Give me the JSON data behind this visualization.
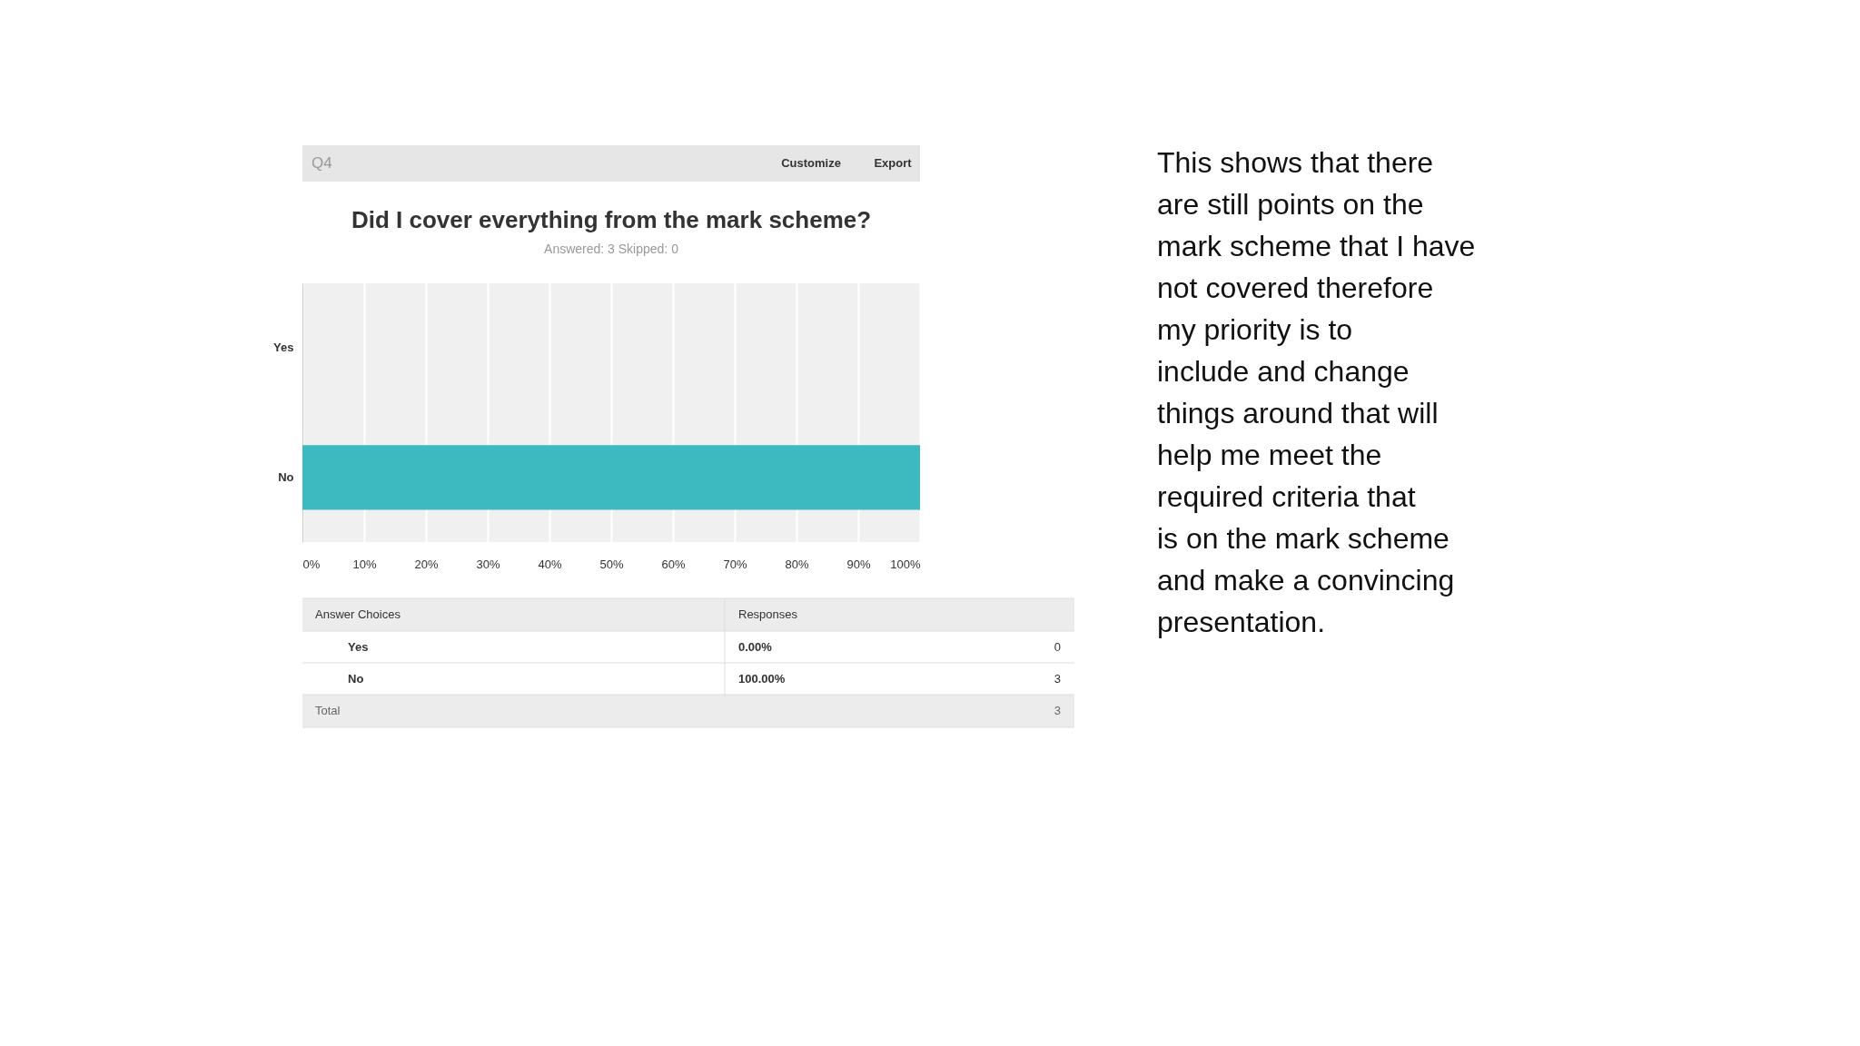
{
  "chart_data": {
    "type": "bar",
    "orientation": "horizontal",
    "title": "Did I cover everything from the mark scheme?",
    "subtitle": "Answered: 3    Skipped: 0",
    "categories": [
      "Yes",
      "No"
    ],
    "values": [
      0,
      100
    ],
    "color": "#3dbac0",
    "xlim": [
      0,
      100
    ],
    "xticks": [
      {
        "value": 0,
        "label": "0%"
      },
      {
        "value": 10,
        "label": "10%"
      },
      {
        "value": 20,
        "label": "20%"
      },
      {
        "value": 30,
        "label": "30%"
      },
      {
        "value": 40,
        "label": "40%"
      },
      {
        "value": 50,
        "label": "50%"
      },
      {
        "value": 60,
        "label": "60%"
      },
      {
        "value": 70,
        "label": "70%"
      },
      {
        "value": 80,
        "label": "80%"
      },
      {
        "value": 90,
        "label": "90%"
      },
      {
        "value": 100,
        "label": "100%"
      }
    ],
    "grid": "x",
    "annotations": [
      "Q4",
      "Customize",
      "Export",
      "Answer Choices",
      "Responses",
      "0.00%",
      "0",
      "100.00%",
      "3",
      "Total",
      "3",
      "This shows that there are still points on the mark scheme that I have not covered therefore my priority is to include and change things around that will help me meet the required criteria that is on the mark scheme and make a convincing presentation."
    ]
  }
}
